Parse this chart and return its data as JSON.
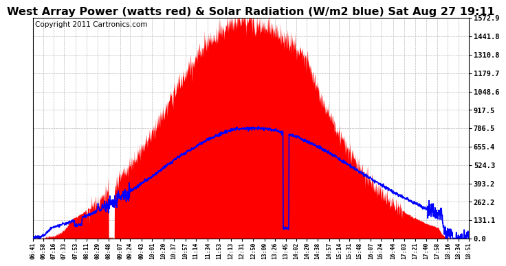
{
  "title": "West Array Power (watts red) & Solar Radiation (W/m2 blue) Sat Aug 27 19:11",
  "copyright_text": "Copyright 2011 Cartronics.com",
  "y_max": 1572.9,
  "y_ticks": [
    0.0,
    131.1,
    262.2,
    393.2,
    524.3,
    655.4,
    786.5,
    917.5,
    1048.6,
    1179.7,
    1310.8,
    1441.8,
    1572.9
  ],
  "x_labels": [
    "06:41",
    "06:58",
    "07:16",
    "07:33",
    "07:53",
    "08:11",
    "08:29",
    "08:48",
    "09:07",
    "09:24",
    "09:43",
    "10:01",
    "10:20",
    "10:37",
    "10:57",
    "11:14",
    "11:34",
    "11:53",
    "12:13",
    "12:31",
    "12:50",
    "13:09",
    "13:26",
    "13:45",
    "14:02",
    "14:20",
    "14:38",
    "14:57",
    "15:14",
    "15:31",
    "15:48",
    "16:07",
    "16:24",
    "16:44",
    "17:03",
    "17:21",
    "17:40",
    "17:58",
    "18:16",
    "18:34",
    "18:51"
  ],
  "background_color": "#ffffff",
  "fill_color": "#ff0000",
  "line_color": "#0000ff",
  "grid_color": "#b0b0b0",
  "title_fontsize": 11.5,
  "copyright_fontsize": 7.5
}
